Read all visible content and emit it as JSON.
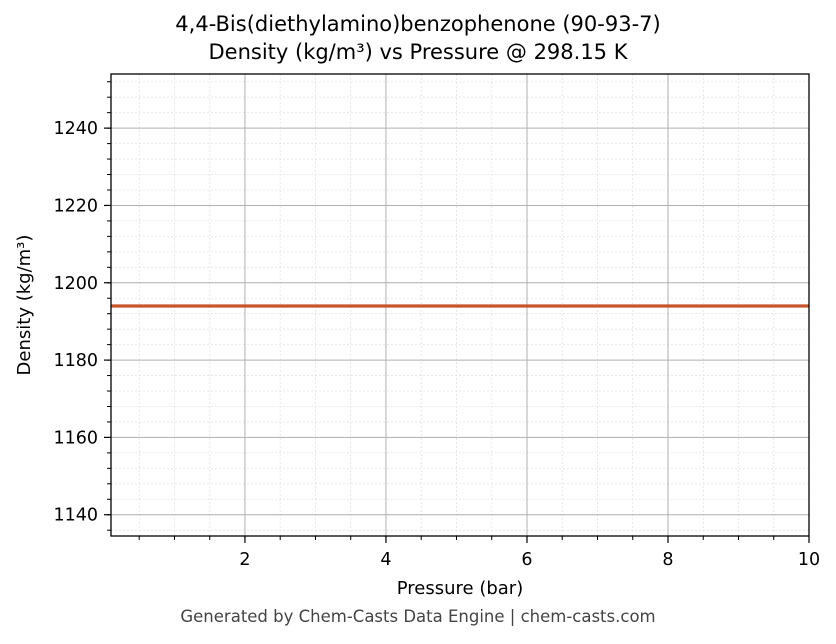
{
  "chart_data": {
    "type": "line",
    "title_line1": "4,4-Bis(diethylamino)benzophenone (90-93-7)",
    "title_line2": "Density (kg/m³) vs Pressure @ 298.15 K",
    "xlabel": "Pressure (bar)",
    "ylabel": "Density (kg/m³)",
    "xlim": [
      0.1,
      10
    ],
    "ylim": [
      1134.5,
      1254
    ],
    "x_ticks": [
      2,
      4,
      6,
      8,
      10
    ],
    "y_ticks": [
      1140,
      1160,
      1180,
      1200,
      1220,
      1240
    ],
    "x_minor_step": 0.5,
    "y_minor_step": 4,
    "grid": true,
    "series": [
      {
        "color": "#c8552a",
        "x": [
          0.1,
          10
        ],
        "y": [
          1194,
          1194
        ]
      }
    ]
  },
  "footer": "Generated by Chem-Casts Data Engine | chem-casts.com"
}
